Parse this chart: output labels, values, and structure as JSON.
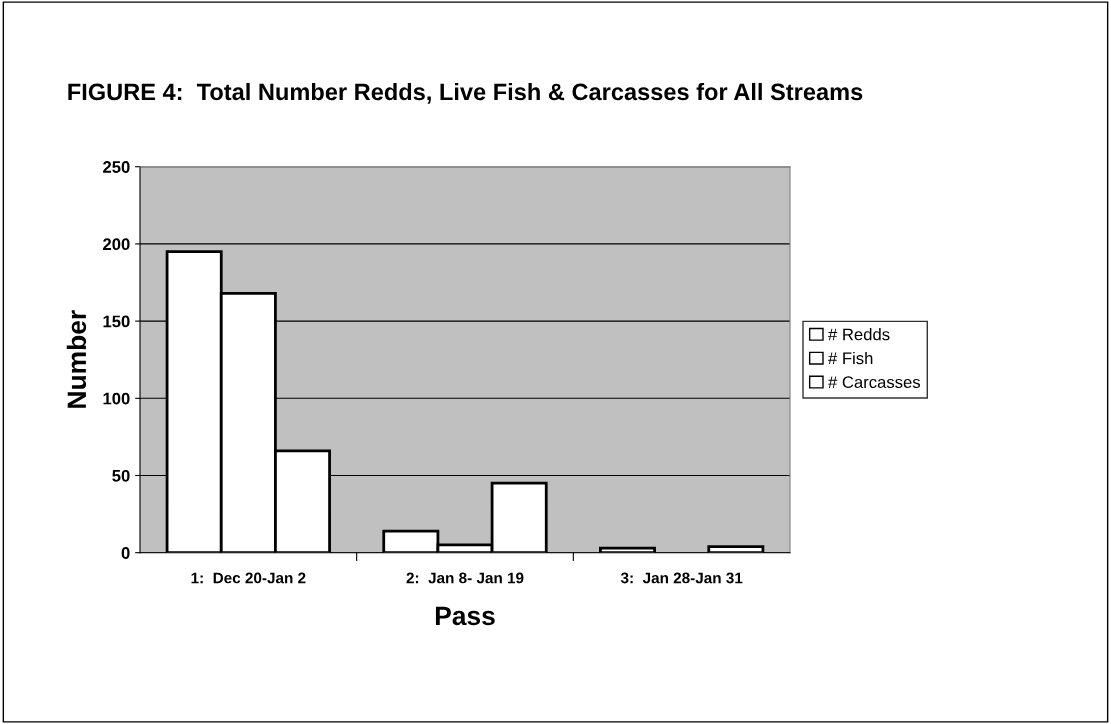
{
  "chart_data": {
    "type": "bar",
    "title": "FIGURE 4:  Total Number Redds, Live Fish & Carcasses for All Streams",
    "xlabel": "Pass",
    "ylabel": "Number",
    "categories": [
      "1:  Dec 20-Jan 2",
      "2:  Jan 8- Jan 19",
      "3:  Jan 28-Jan 31"
    ],
    "series": [
      {
        "name": "# Redds",
        "color": "#ffffff",
        "values": [
          195,
          14,
          3
        ]
      },
      {
        "name": "# Fish",
        "color": "#ffffff",
        "values": [
          168,
          5,
          0
        ]
      },
      {
        "name": "# Carcasses",
        "color": "#ffffff",
        "values": [
          66,
          45,
          4
        ]
      }
    ],
    "ylim": [
      0,
      250
    ],
    "yticks": [
      0,
      50,
      100,
      150,
      200,
      250
    ],
    "grid": "y",
    "legend": "right"
  }
}
